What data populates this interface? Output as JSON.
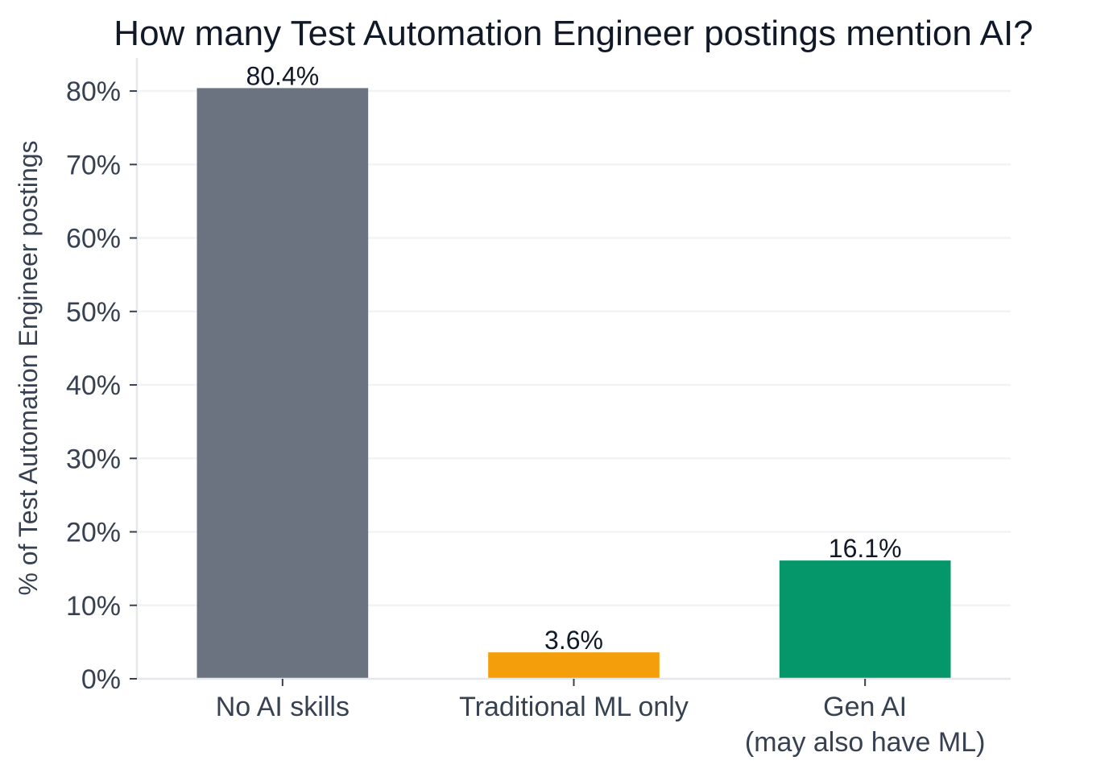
{
  "chart_data": {
    "type": "bar",
    "title": "How many Test Automation Engineer postings mention AI?",
    "ylabel": "% of Test Automation Engineer postings",
    "xlabel": "",
    "categories": [
      [
        "No AI skills"
      ],
      [
        "Traditional ML only"
      ],
      [
        "Gen AI",
        "(may also have ML)"
      ]
    ],
    "values": [
      80.4,
      3.6,
      16.1
    ],
    "value_labels": [
      "80.4%",
      "3.6%",
      "16.1%"
    ],
    "colors": [
      "#6b7280",
      "#f59e0b",
      "#059669"
    ],
    "ylim": [
      0,
      84.5
    ],
    "yticks": [
      0,
      10,
      20,
      30,
      40,
      50,
      60,
      70,
      80
    ],
    "ytick_labels": [
      "0%",
      "10%",
      "20%",
      "30%",
      "40%",
      "50%",
      "60%",
      "70%",
      "80%"
    ],
    "grid": true,
    "legend": "none"
  }
}
